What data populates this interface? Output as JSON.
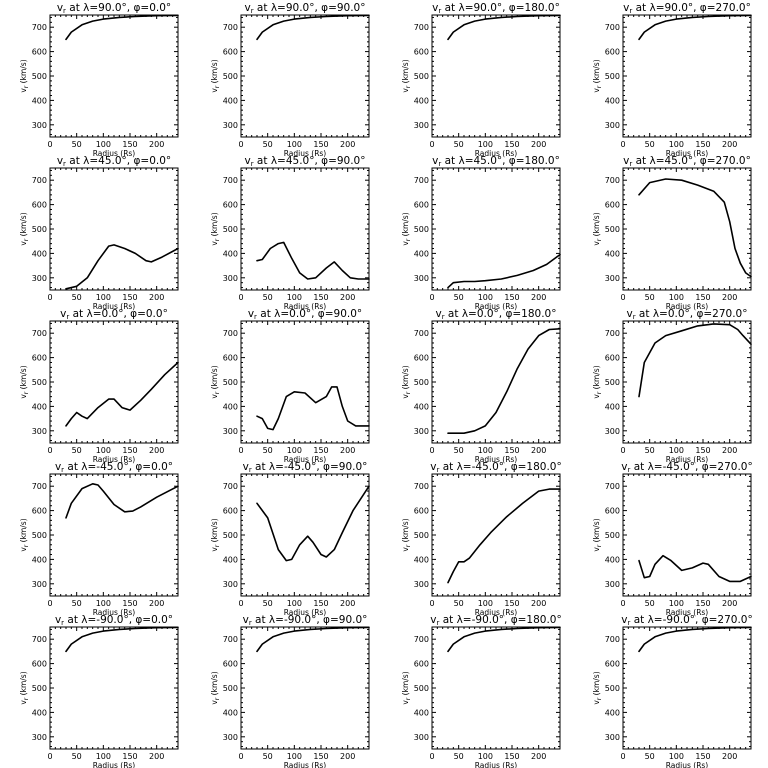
{
  "chart_data": {
    "type": "line",
    "layout": "grid",
    "rows": 5,
    "cols": 4,
    "xlabel": "Radius (Rs)",
    "ylabel": "v_r (km/s)",
    "xlim": [
      0,
      240
    ],
    "ylim": [
      250,
      750
    ],
    "xticks": [
      0,
      50,
      100,
      150,
      200
    ],
    "yticks": [
      300,
      400,
      500,
      600,
      700
    ],
    "panels": [
      {
        "lat": "90.0",
        "lon": "0.0",
        "x": [
          30,
          40,
          60,
          80,
          100,
          130,
          160,
          200,
          240
        ],
        "y": [
          650,
          680,
          710,
          725,
          733,
          740,
          744,
          747,
          748
        ]
      },
      {
        "lat": "90.0",
        "lon": "90.0",
        "x": [
          30,
          40,
          60,
          80,
          100,
          130,
          160,
          200,
          240
        ],
        "y": [
          650,
          680,
          710,
          725,
          733,
          740,
          744,
          747,
          748
        ]
      },
      {
        "lat": "90.0",
        "lon": "180.0",
        "x": [
          30,
          40,
          60,
          80,
          100,
          130,
          160,
          200,
          240
        ],
        "y": [
          650,
          680,
          710,
          725,
          733,
          740,
          744,
          747,
          748
        ]
      },
      {
        "lat": "90.0",
        "lon": "270.0",
        "x": [
          30,
          40,
          60,
          80,
          100,
          130,
          160,
          200,
          240
        ],
        "y": [
          650,
          680,
          710,
          725,
          733,
          740,
          744,
          747,
          748
        ]
      },
      {
        "lat": "45.0",
        "lon": "0.0",
        "x": [
          30,
          50,
          70,
          90,
          110,
          120,
          140,
          160,
          180,
          190,
          210,
          240
        ],
        "y": [
          255,
          265,
          300,
          370,
          430,
          435,
          420,
          400,
          370,
          365,
          385,
          420
        ]
      },
      {
        "lat": "45.0",
        "lon": "90.0",
        "x": [
          30,
          40,
          55,
          70,
          80,
          95,
          110,
          125,
          140,
          160,
          175,
          190,
          205,
          220,
          240
        ],
        "y": [
          370,
          375,
          420,
          440,
          445,
          380,
          320,
          295,
          300,
          340,
          365,
          330,
          300,
          295,
          295
        ]
      },
      {
        "lat": "45.0",
        "lon": "180.0",
        "x": [
          30,
          40,
          60,
          80,
          100,
          130,
          160,
          190,
          215,
          240
        ],
        "y": [
          260,
          280,
          285,
          285,
          288,
          295,
          310,
          330,
          355,
          395
        ]
      },
      {
        "lat": "45.0",
        "lon": "270.0",
        "x": [
          30,
          50,
          80,
          110,
          140,
          170,
          190,
          200,
          210,
          220,
          230,
          240
        ],
        "y": [
          640,
          690,
          705,
          700,
          680,
          655,
          610,
          530,
          420,
          360,
          320,
          305
        ]
      },
      {
        "lat": "0.0",
        "lon": "0.0",
        "x": [
          30,
          40,
          50,
          60,
          70,
          90,
          110,
          120,
          135,
          150,
          170,
          190,
          215,
          240
        ],
        "y": [
          320,
          350,
          375,
          360,
          350,
          395,
          430,
          430,
          395,
          385,
          425,
          470,
          530,
          580
        ]
      },
      {
        "lat": "0.0",
        "lon": "90.0",
        "x": [
          30,
          40,
          50,
          60,
          70,
          85,
          100,
          120,
          140,
          160,
          170,
          180,
          190,
          200,
          215,
          240
        ],
        "y": [
          360,
          350,
          310,
          305,
          350,
          440,
          460,
          455,
          415,
          440,
          480,
          480,
          400,
          340,
          320,
          320
        ]
      },
      {
        "lat": "0.0",
        "lon": "180.0",
        "x": [
          30,
          60,
          80,
          100,
          120,
          140,
          160,
          180,
          200,
          220,
          240
        ],
        "y": [
          290,
          290,
          300,
          320,
          375,
          460,
          555,
          635,
          690,
          715,
          718
        ]
      },
      {
        "lat": "0.0",
        "lon": "270.0",
        "x": [
          30,
          40,
          60,
          80,
          110,
          140,
          170,
          200,
          215,
          225,
          240
        ],
        "y": [
          440,
          580,
          660,
          690,
          710,
          730,
          738,
          735,
          715,
          690,
          655
        ]
      },
      {
        "lat": "-45.0",
        "lon": "0.0",
        "x": [
          30,
          40,
          60,
          80,
          90,
          100,
          120,
          140,
          155,
          170,
          200,
          240
        ],
        "y": [
          570,
          630,
          690,
          710,
          705,
          680,
          625,
          595,
          598,
          615,
          655,
          700
        ]
      },
      {
        "lat": "-45.0",
        "lon": "90.0",
        "x": [
          30,
          50,
          70,
          85,
          95,
          110,
          125,
          135,
          150,
          160,
          175,
          190,
          210,
          240
        ],
        "y": [
          630,
          570,
          440,
          395,
          400,
          460,
          495,
          470,
          420,
          410,
          440,
          510,
          600,
          700
        ]
      },
      {
        "lat": "-45.0",
        "lon": "180.0",
        "x": [
          30,
          40,
          50,
          60,
          70,
          90,
          110,
          140,
          170,
          200,
          220,
          240
        ],
        "y": [
          305,
          350,
          390,
          390,
          405,
          460,
          510,
          575,
          630,
          680,
          688,
          688
        ]
      },
      {
        "lat": "-45.0",
        "lon": "270.0",
        "x": [
          30,
          40,
          50,
          60,
          75,
          90,
          110,
          130,
          150,
          160,
          180,
          200,
          220,
          240
        ],
        "y": [
          395,
          325,
          330,
          380,
          415,
          395,
          355,
          365,
          385,
          380,
          330,
          310,
          310,
          330
        ]
      },
      {
        "lat": "-90.0",
        "lon": "0.0",
        "x": [
          30,
          40,
          60,
          80,
          100,
          130,
          160,
          200,
          240
        ],
        "y": [
          650,
          680,
          710,
          725,
          733,
          740,
          744,
          747,
          748
        ]
      },
      {
        "lat": "-90.0",
        "lon": "90.0",
        "x": [
          30,
          40,
          60,
          80,
          100,
          130,
          160,
          200,
          240
        ],
        "y": [
          650,
          680,
          710,
          725,
          733,
          740,
          744,
          747,
          748
        ]
      },
      {
        "lat": "-90.0",
        "lon": "180.0",
        "x": [
          30,
          40,
          60,
          80,
          100,
          130,
          160,
          200,
          240
        ],
        "y": [
          650,
          680,
          710,
          725,
          733,
          740,
          744,
          747,
          748
        ]
      },
      {
        "lat": "-90.0",
        "lon": "270.0",
        "x": [
          30,
          40,
          60,
          80,
          100,
          130,
          160,
          200,
          240
        ],
        "y": [
          650,
          680,
          710,
          725,
          733,
          740,
          744,
          747,
          748
        ]
      }
    ]
  }
}
